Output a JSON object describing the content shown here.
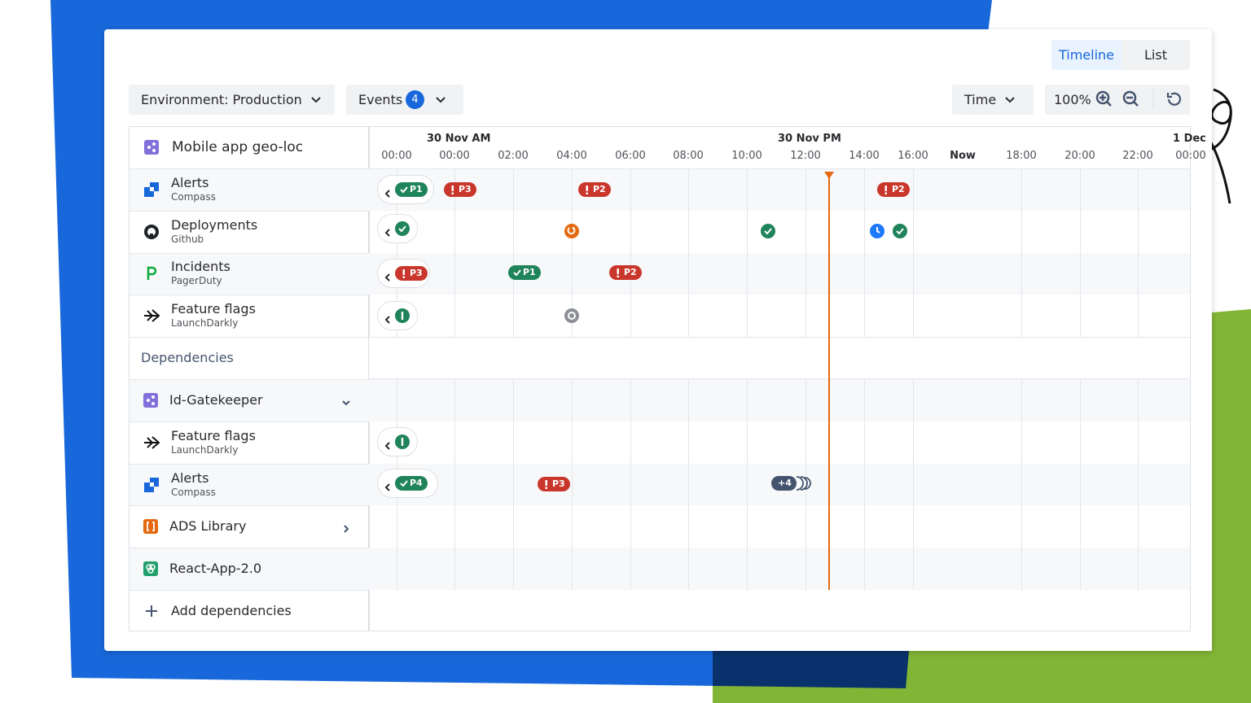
{
  "view_toggle": {
    "timeline": "Timeline",
    "list": "List"
  },
  "filters": {
    "environment": "Environment: Production",
    "events": "Events",
    "events_count": 4,
    "time": "Time",
    "zoom": "100%"
  },
  "timeline": {
    "dates": [
      "30 Nov AM",
      "30 Nov PM",
      "1 Dec"
    ],
    "hours": [
      "00:00",
      "00:00",
      "02:00",
      "04:00",
      "06:00",
      "08:00",
      "10:00",
      "12:00",
      "14:00",
      "16:00",
      "Now",
      "18:00",
      "20:00",
      "22:00",
      "00:00"
    ]
  },
  "service": {
    "name": "Mobile app geo-loc",
    "rows": [
      {
        "title": "Alerts",
        "source": "Compass",
        "badges": [
          "P1",
          "P3",
          "P2",
          "P2"
        ]
      },
      {
        "title": "Deployments",
        "source": "Github"
      },
      {
        "title": "Incidents",
        "source": "PagerDuty",
        "badges": [
          "P3",
          "P1",
          "P2"
        ]
      },
      {
        "title": "Feature flags",
        "source": "LaunchDarkly"
      }
    ]
  },
  "dependencies": {
    "title": "Dependencies",
    "items": [
      {
        "name": "Id-Gatekeeper",
        "rows": [
          {
            "title": "Feature flags",
            "source": "LaunchDarkly"
          },
          {
            "title": "Alerts",
            "source": "Compass",
            "badges": [
              "P4",
              "P3",
              "+4"
            ]
          }
        ]
      },
      {
        "name": "ADS Library"
      },
      {
        "name": "React-App-2.0"
      }
    ],
    "add": "Add dependencies"
  }
}
